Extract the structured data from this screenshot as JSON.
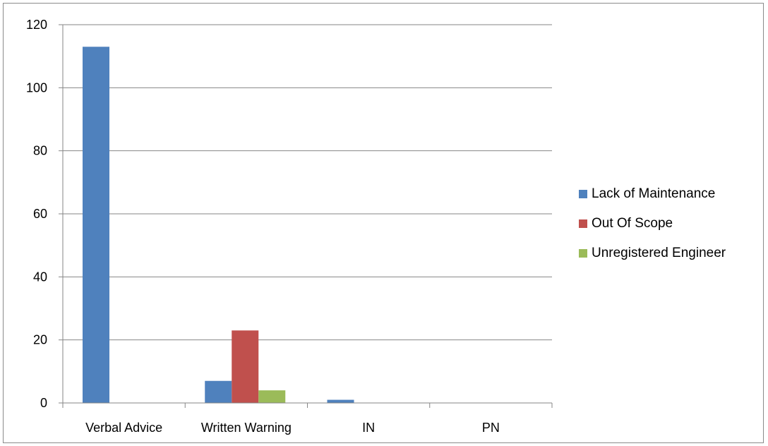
{
  "chart_data": {
    "type": "bar",
    "categories": [
      "Verbal Advice",
      "Written Warning",
      "IN",
      "PN"
    ],
    "series": [
      {
        "name": "Lack of Maintenance",
        "color": "#4f81bd",
        "values": [
          113,
          7,
          1,
          0
        ]
      },
      {
        "name": "Out Of Scope",
        "color": "#c0504d",
        "values": [
          0,
          23,
          0,
          0
        ]
      },
      {
        "name": "Unregistered Engineer",
        "color": "#9bbb59",
        "values": [
          0,
          4,
          0,
          0
        ]
      }
    ],
    "ylim": [
      0,
      120
    ],
    "yticks": [
      0,
      20,
      40,
      60,
      80,
      100,
      120
    ],
    "grid": true,
    "legend_position": "right",
    "title": "",
    "xlabel": "",
    "ylabel": ""
  }
}
